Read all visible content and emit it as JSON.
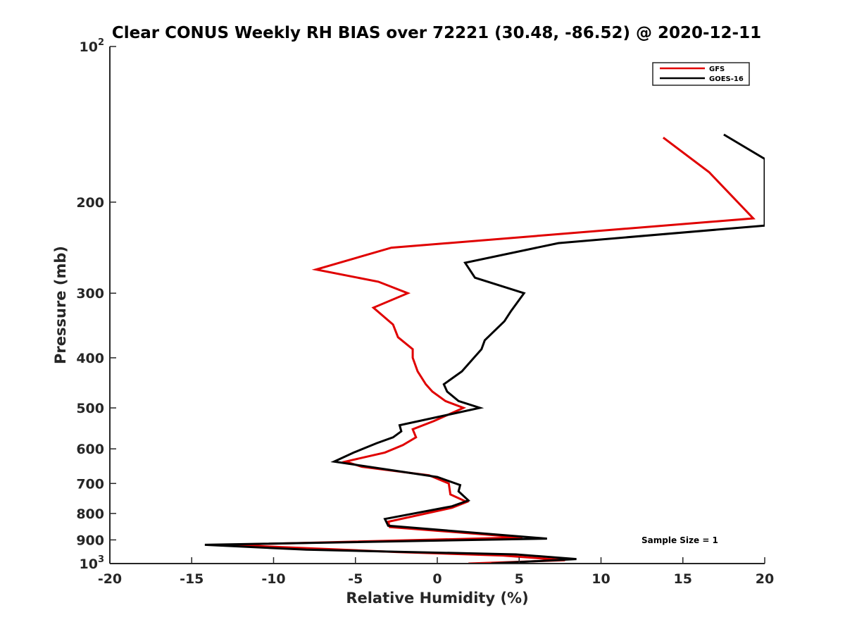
{
  "chart_data": {
    "type": "line",
    "title": "Clear CONUS Weekly RH BIAS over 72221 (30.48, -86.52) @ 2020-12-11",
    "xlabel": "Relative Humidity (%)",
    "ylabel": "Pressure (mb)",
    "xlim": [
      -20,
      20
    ],
    "ylim": [
      100,
      1000
    ],
    "y_scale": "log",
    "y_reversed": true,
    "grid": false,
    "legend_position": "top-right",
    "x_ticks": [
      -20,
      -15,
      -10,
      -5,
      0,
      5,
      10,
      15,
      20
    ],
    "x_tick_labels": [
      "-20",
      "-15",
      "-10",
      "-5",
      "0",
      "5",
      "10",
      "15",
      "20"
    ],
    "y_ticks": [
      100,
      200,
      300,
      400,
      500,
      600,
      700,
      800,
      900,
      1000
    ],
    "y_tick_labels": [
      {
        "base": "10",
        "exp": "2"
      },
      {
        "base": "200",
        "exp": ""
      },
      {
        "base": "300",
        "exp": ""
      },
      {
        "base": "400",
        "exp": ""
      },
      {
        "base": "500",
        "exp": ""
      },
      {
        "base": "600",
        "exp": ""
      },
      {
        "base": "700",
        "exp": ""
      },
      {
        "base": "800",
        "exp": ""
      },
      {
        "base": "900",
        "exp": ""
      },
      {
        "base": "10",
        "exp": "3"
      }
    ],
    "annotation": "Sample Size = 1",
    "series": [
      {
        "name": "GFS",
        "color": "#e00000",
        "points": [
          [
            13.8,
            150
          ],
          [
            16.6,
            175
          ],
          [
            19.3,
            215
          ],
          [
            -2.8,
            245
          ],
          [
            -7.4,
            270
          ],
          [
            -3.6,
            285
          ],
          [
            -1.8,
            300
          ],
          [
            -3.9,
            320
          ],
          [
            -2.7,
            345
          ],
          [
            -2.4,
            365
          ],
          [
            -1.5,
            385
          ],
          [
            -1.5,
            400
          ],
          [
            -1.2,
            425
          ],
          [
            -0.7,
            450
          ],
          [
            -0.3,
            465
          ],
          [
            0.5,
            485
          ],
          [
            1.6,
            500
          ],
          [
            -0.2,
            530
          ],
          [
            -1.5,
            550
          ],
          [
            -1.3,
            570
          ],
          [
            -2.1,
            590
          ],
          [
            -3.2,
            610
          ],
          [
            -5.6,
            635
          ],
          [
            -4.6,
            650
          ],
          [
            -0.5,
            675
          ],
          [
            0.7,
            700
          ],
          [
            0.8,
            735
          ],
          [
            1.8,
            760
          ],
          [
            0.9,
            780
          ],
          [
            -3.0,
            830
          ],
          [
            -2.9,
            850
          ],
          [
            5.2,
            890
          ],
          [
            -12.8,
            920
          ],
          [
            -2.5,
            950
          ],
          [
            4.0,
            965
          ],
          [
            7.8,
            985
          ],
          [
            1.9,
            1000
          ]
        ]
      },
      {
        "name": "GOES-16",
        "color": "#000000",
        "points": [
          [
            17.5,
            148
          ],
          [
            20.0,
            165
          ],
          [
            20.0,
            222
          ],
          [
            7.4,
            240
          ],
          [
            1.7,
            262
          ],
          [
            2.3,
            280
          ],
          [
            5.3,
            300
          ],
          [
            4.5,
            325
          ],
          [
            4.1,
            340
          ],
          [
            2.9,
            370
          ],
          [
            2.7,
            385
          ],
          [
            1.5,
            425
          ],
          [
            0.4,
            450
          ],
          [
            0.6,
            465
          ],
          [
            1.3,
            485
          ],
          [
            2.6,
            500
          ],
          [
            -2.3,
            540
          ],
          [
            -2.2,
            555
          ],
          [
            -2.7,
            570
          ],
          [
            -3.7,
            585
          ],
          [
            -5.1,
            610
          ],
          [
            -6.3,
            635
          ],
          [
            0.0,
            680
          ],
          [
            1.4,
            705
          ],
          [
            1.3,
            725
          ],
          [
            1.9,
            755
          ],
          [
            0.9,
            775
          ],
          [
            -3.2,
            820
          ],
          [
            -3.0,
            845
          ],
          [
            6.7,
            895
          ],
          [
            -14.2,
            920
          ],
          [
            -8.0,
            940
          ],
          [
            4.8,
            960
          ],
          [
            8.5,
            980
          ],
          [
            3.3,
            1000
          ]
        ]
      }
    ]
  }
}
